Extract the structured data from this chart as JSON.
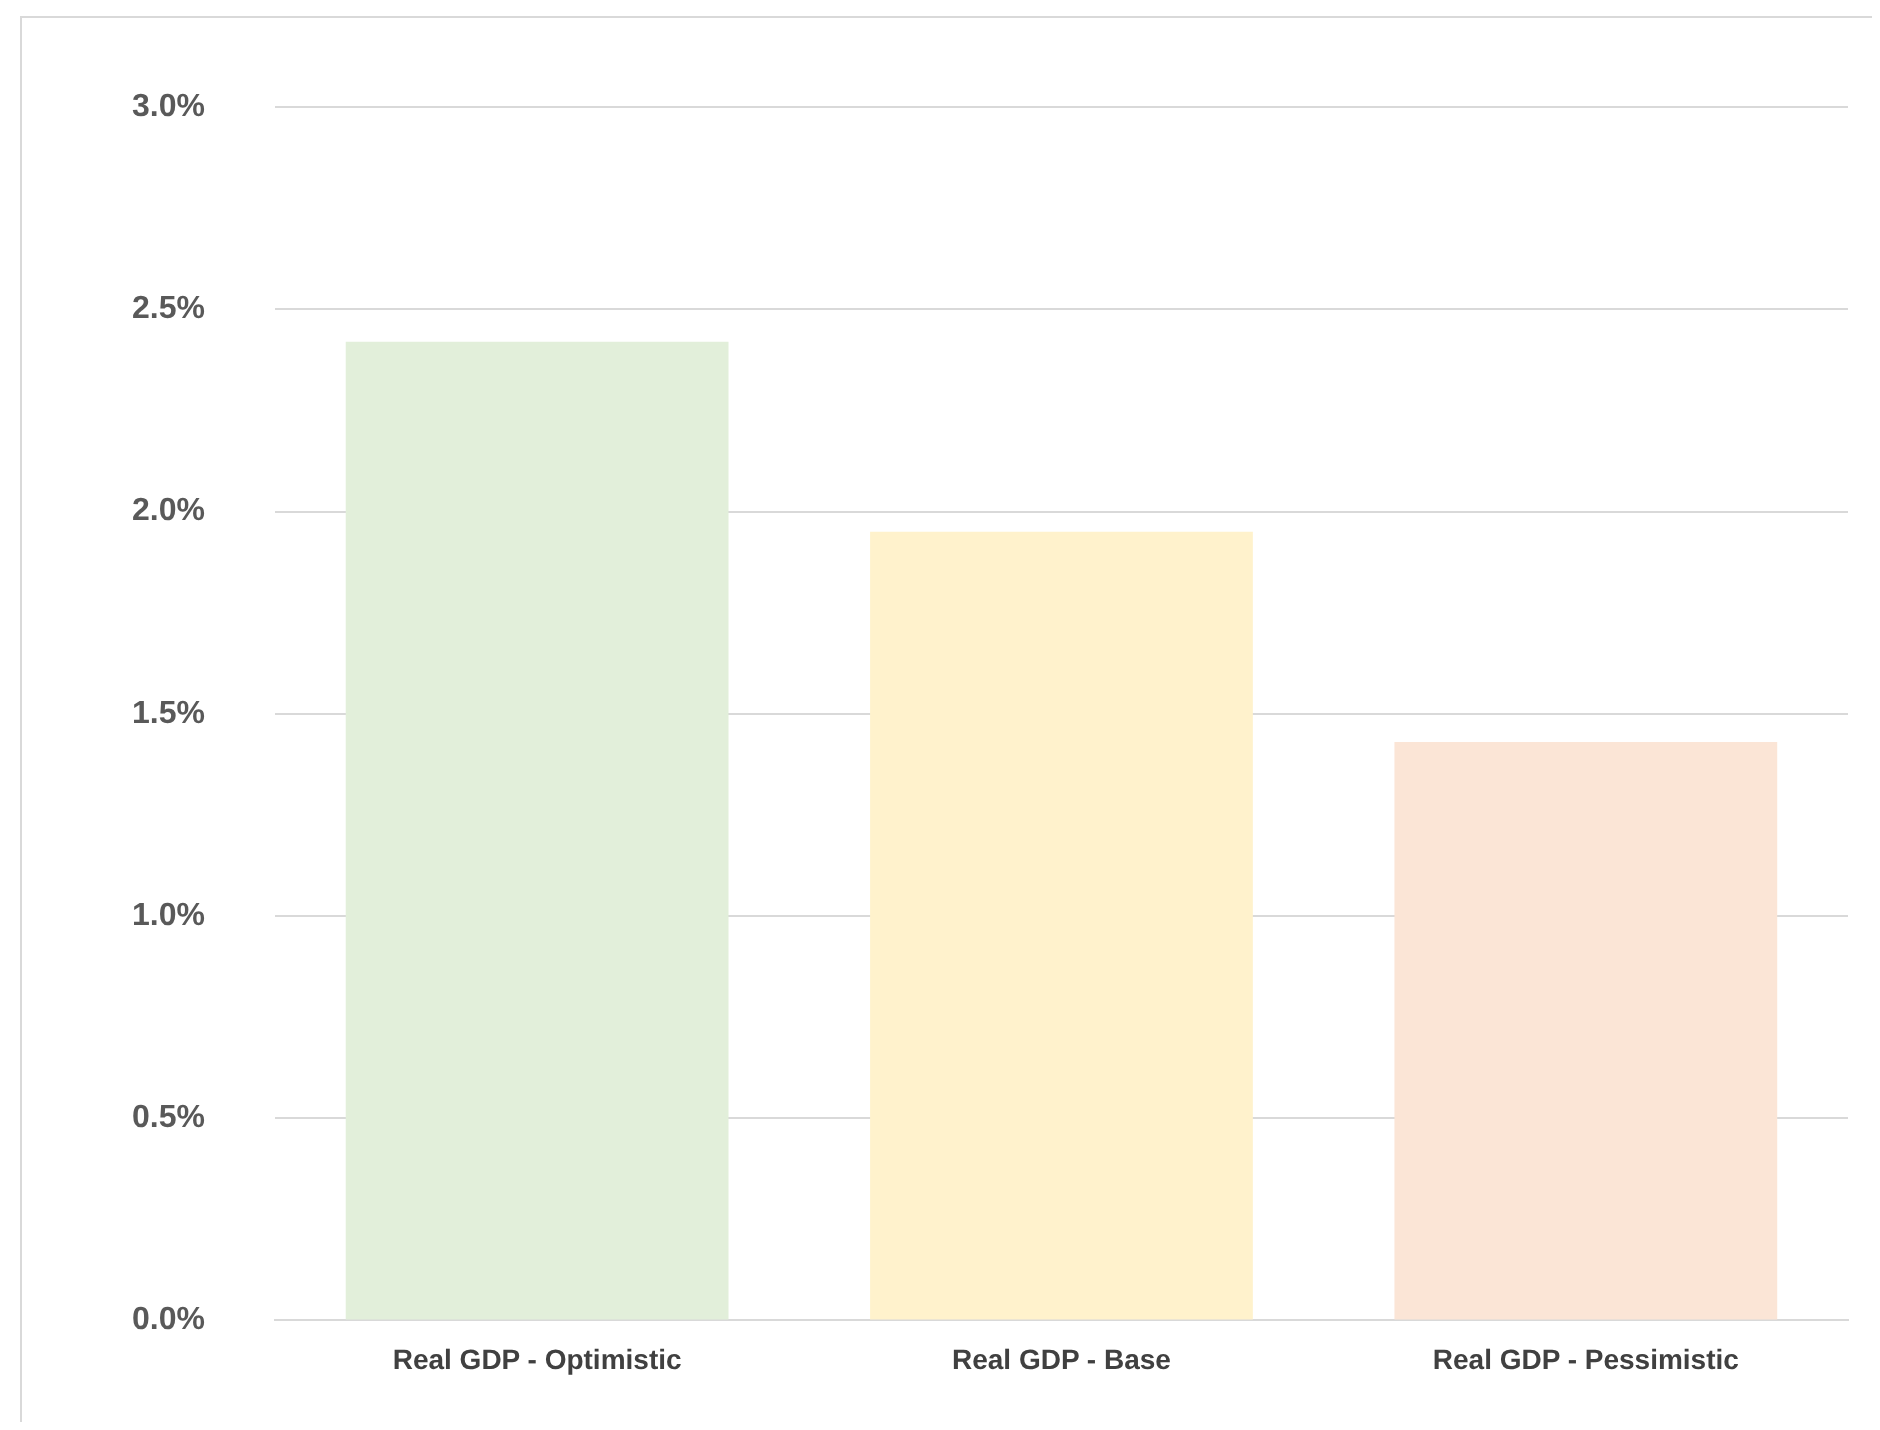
{
  "chart_data": {
    "type": "bar",
    "categories": [
      "Real GDP - Optimistic",
      "Real GDP - Base",
      "Real GDP - Pessimistic"
    ],
    "values": [
      2.42,
      1.95,
      1.43
    ],
    "colors": [
      "#e2efda",
      "#fff2cc",
      "#fbe5d6"
    ],
    "ylim": [
      0,
      3
    ],
    "yticks": [
      {
        "value": 0,
        "label": "0.0%"
      },
      {
        "value": 0.5,
        "label": "0.5%"
      },
      {
        "value": 1,
        "label": "1.0%"
      },
      {
        "value": 1.5,
        "label": "1.5%"
      },
      {
        "value": 2,
        "label": "2.0%"
      },
      {
        "value": 2.5,
        "label": "2.5%"
      },
      {
        "value": 3,
        "label": "3.0%"
      }
    ],
    "grid": "y",
    "legend": false
  }
}
